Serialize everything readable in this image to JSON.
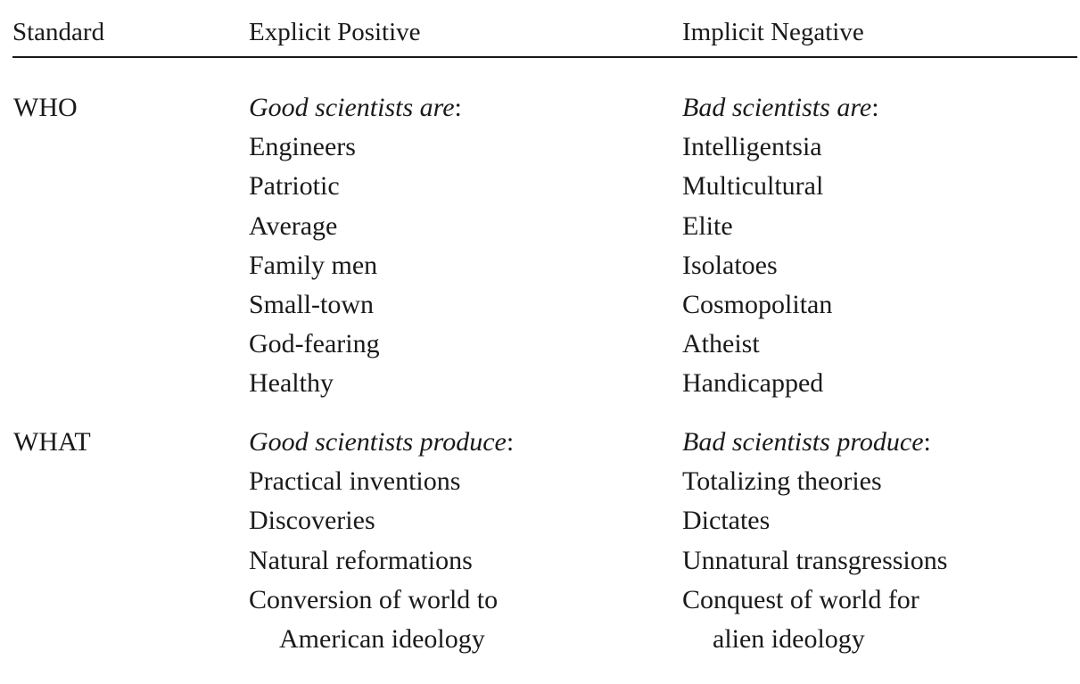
{
  "headers": {
    "standard": "Standard",
    "explicit_positive": "Explicit Positive",
    "implicit_negative": "Implicit Negative"
  },
  "sections": [
    {
      "standard": "WHO",
      "positive": {
        "heading": "Good scientists are",
        "items": [
          "Engineers",
          "Patriotic",
          "Average",
          "Family men",
          "Small-town",
          "God-fearing",
          "Healthy"
        ]
      },
      "negative": {
        "heading": "Bad scientists are",
        "items": [
          "Intelligentsia",
          "Multicultural",
          "Elite",
          "Isolatoes",
          "Cosmopolitan",
          "Atheist",
          "Handicapped"
        ]
      }
    },
    {
      "standard": "WHAT",
      "positive": {
        "heading": "Good scientists produce",
        "items": [
          "Practical inventions",
          "Discoveries",
          "Natural reformations",
          "Conversion of world to",
          "American ideology"
        ]
      },
      "negative": {
        "heading": "Bad scientists produce",
        "items": [
          "Totalizing theories",
          "Dictates",
          "Unnatural transgressions",
          "Conquest of world for",
          "alien ideology"
        ]
      }
    }
  ]
}
